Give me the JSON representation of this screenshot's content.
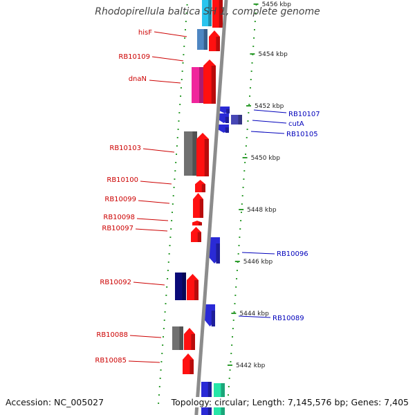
{
  "title": "Rhodopirellula baltica SH 1, complete genome",
  "accession": "Accession: NC_005027",
  "topology": "Topology: circular; Length: 7,145,576 bp; Genes: 7,405",
  "colors": {
    "backbone": "#8c8c8c",
    "tick_dot": "#2e9c2e",
    "forward_label": "#cc0000",
    "reverse_label": "#0000bb"
  },
  "scale_ticks": [
    {
      "label": "5456 kbp"
    },
    {
      "label": "5454 kbp"
    },
    {
      "label": "5452 kbp"
    },
    {
      "label": "5450 kbp"
    },
    {
      "label": "5448 kbp"
    },
    {
      "label": "5446 kbp"
    },
    {
      "label": "5444 kbp"
    },
    {
      "label": "5442 kbp"
    }
  ],
  "gene_labels": [
    {
      "name": "hisF",
      "strand": "left"
    },
    {
      "name": "RB10109",
      "strand": "left"
    },
    {
      "name": "dnaN",
      "strand": "left"
    },
    {
      "name": "RB10107",
      "strand": "right"
    },
    {
      "name": "cutA",
      "strand": "right"
    },
    {
      "name": "RB10105",
      "strand": "right"
    },
    {
      "name": "RB10103",
      "strand": "left"
    },
    {
      "name": "RB10100",
      "strand": "left"
    },
    {
      "name": "RB10099",
      "strand": "left"
    },
    {
      "name": "RB10098",
      "strand": "left"
    },
    {
      "name": "RB10097",
      "strand": "left"
    },
    {
      "name": "RB10096",
      "strand": "right"
    },
    {
      "name": "RB10092",
      "strand": "left"
    },
    {
      "name": "RB10089",
      "strand": "right"
    },
    {
      "name": "RB10088",
      "strand": "left"
    },
    {
      "name": "RB10085",
      "strand": "left"
    }
  ]
}
